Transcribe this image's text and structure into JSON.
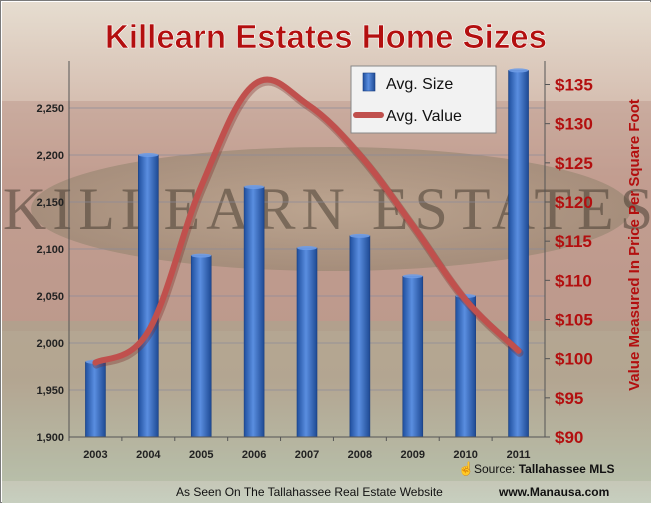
{
  "chart_data": {
    "type": "bar+line",
    "title": "Killearn Estates Home Sizes",
    "categories": [
      "2003",
      "2004",
      "2005",
      "2006",
      "2007",
      "2008",
      "2009",
      "2010",
      "2011"
    ],
    "series": [
      {
        "name": "Avg. Size",
        "type": "bar",
        "axis": "left",
        "color": "#2f5fb3",
        "values": [
          1980,
          2200,
          2093,
          2166,
          2101,
          2114,
          2071,
          2050,
          2290
        ]
      },
      {
        "name": "Avg. Value",
        "type": "line",
        "axis": "right",
        "color": "#c0504d",
        "values": [
          99.5,
          103.5,
          122,
          135,
          132.5,
          126,
          117,
          107.5,
          101
        ]
      }
    ],
    "y_left": {
      "ylim": [
        1900,
        2300
      ],
      "ticks": [
        "1,900",
        "1,950",
        "2,000",
        "2,050",
        "2,100",
        "2,150",
        "2,200",
        "2,250"
      ]
    },
    "y_right": {
      "label": "Value Measured In Price Per Square Foot",
      "ylim": [
        90,
        138
      ],
      "ticks": [
        "$90",
        "$95",
        "$100",
        "$105",
        "$110",
        "$115",
        "$120",
        "$125",
        "$130",
        "$135"
      ]
    },
    "grid": true,
    "legend_position": "top-right"
  },
  "footer": {
    "source_prefix": "Source: ",
    "source_name": "Tallahassee MLS",
    "seen_on": "As Seen On The Tallahassee Real Estate Website",
    "url": "www.Manausa.com"
  },
  "background": {
    "sign_text": "KILLEARN ESTATES"
  }
}
